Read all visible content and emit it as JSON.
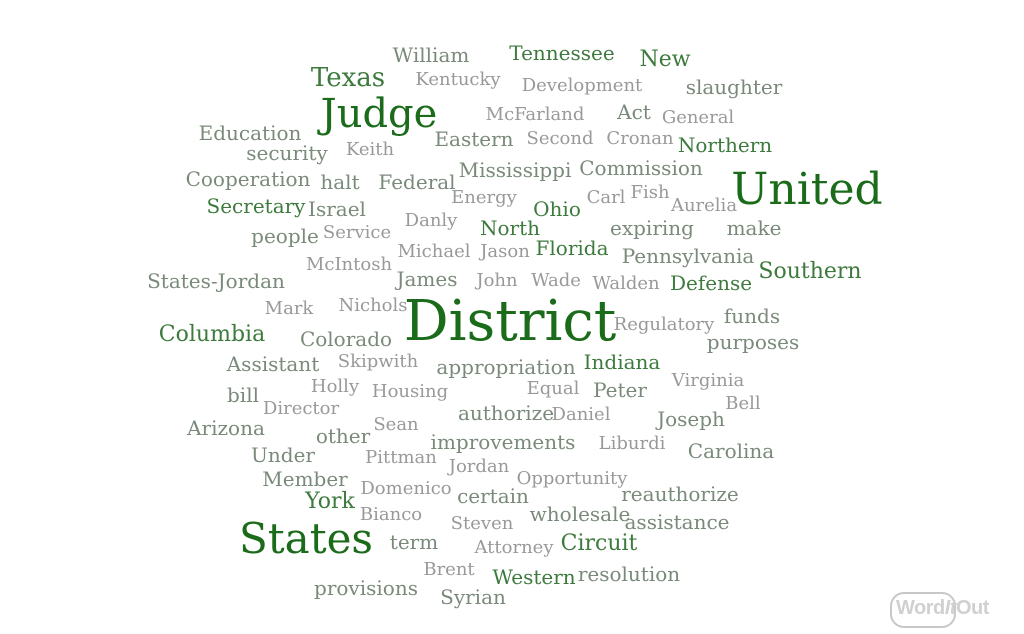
{
  "colors": {
    "dark": "#1a6b1a",
    "mid": "#3d7a3d",
    "gray": "#7a8a7a",
    "light": "#999999"
  },
  "logo": {
    "part1": "Word",
    "part2": "It",
    "part3": "Out"
  },
  "words": [
    {
      "text": "William",
      "tone": "gray",
      "size": 20
    },
    {
      "text": "Tennessee",
      "tone": "mid",
      "size": 20
    },
    {
      "text": "New",
      "tone": "mid",
      "size": 22
    },
    {
      "text": "Texas",
      "tone": "mid",
      "size": 26
    },
    {
      "text": "Kentucky",
      "tone": "light",
      "size": 18
    },
    {
      "text": "Development",
      "tone": "light",
      "size": 18
    },
    {
      "text": "slaughter",
      "tone": "gray",
      "size": 20
    },
    {
      "text": "Judge",
      "tone": "dark",
      "size": 40
    },
    {
      "text": "McFarland",
      "tone": "light",
      "size": 18
    },
    {
      "text": "Act",
      "tone": "gray",
      "size": 20
    },
    {
      "text": "General",
      "tone": "light",
      "size": 18
    },
    {
      "text": "Education",
      "tone": "gray",
      "size": 20
    },
    {
      "text": "Eastern",
      "tone": "gray",
      "size": 20
    },
    {
      "text": "Second",
      "tone": "light",
      "size": 18
    },
    {
      "text": "Cronan",
      "tone": "light",
      "size": 18
    },
    {
      "text": "Northern",
      "tone": "mid",
      "size": 20
    },
    {
      "text": "security",
      "tone": "gray",
      "size": 20
    },
    {
      "text": "Keith",
      "tone": "light",
      "size": 18
    },
    {
      "text": "Mississippi",
      "tone": "gray",
      "size": 20
    },
    {
      "text": "Commission",
      "tone": "gray",
      "size": 20
    },
    {
      "text": "United",
      "tone": "dark",
      "size": 44
    },
    {
      "text": "Cooperation",
      "tone": "gray",
      "size": 20
    },
    {
      "text": "halt",
      "tone": "gray",
      "size": 20
    },
    {
      "text": "Federal",
      "tone": "gray",
      "size": 20
    },
    {
      "text": "Energy",
      "tone": "light",
      "size": 18
    },
    {
      "text": "Carl",
      "tone": "light",
      "size": 18
    },
    {
      "text": "Fish",
      "tone": "light",
      "size": 18
    },
    {
      "text": "Secretary",
      "tone": "mid",
      "size": 20
    },
    {
      "text": "Israel",
      "tone": "gray",
      "size": 20
    },
    {
      "text": "Ohio",
      "tone": "mid",
      "size": 20
    },
    {
      "text": "Aurelia",
      "tone": "light",
      "size": 18
    },
    {
      "text": "Danly",
      "tone": "light",
      "size": 18
    },
    {
      "text": "North",
      "tone": "mid",
      "size": 20
    },
    {
      "text": "expiring",
      "tone": "gray",
      "size": 20
    },
    {
      "text": "make",
      "tone": "gray",
      "size": 20
    },
    {
      "text": "people",
      "tone": "gray",
      "size": 20
    },
    {
      "text": "Service",
      "tone": "light",
      "size": 18
    },
    {
      "text": "Florida",
      "tone": "mid",
      "size": 20
    },
    {
      "text": "Michael",
      "tone": "light",
      "size": 18
    },
    {
      "text": "Jason",
      "tone": "light",
      "size": 18
    },
    {
      "text": "Pennsylvania",
      "tone": "gray",
      "size": 20
    },
    {
      "text": "McIntosh",
      "tone": "light",
      "size": 18
    },
    {
      "text": "Southern",
      "tone": "mid",
      "size": 22
    },
    {
      "text": "States-Jordan",
      "tone": "gray",
      "size": 20
    },
    {
      "text": "James",
      "tone": "gray",
      "size": 20
    },
    {
      "text": "John",
      "tone": "light",
      "size": 18
    },
    {
      "text": "Wade",
      "tone": "light",
      "size": 18
    },
    {
      "text": "Walden",
      "tone": "light",
      "size": 18
    },
    {
      "text": "Defense",
      "tone": "mid",
      "size": 20
    },
    {
      "text": "Mark",
      "tone": "light",
      "size": 18
    },
    {
      "text": "Nichols",
      "tone": "light",
      "size": 18
    },
    {
      "text": "District",
      "tone": "dark",
      "size": 56
    },
    {
      "text": "funds",
      "tone": "gray",
      "size": 20
    },
    {
      "text": "Regulatory",
      "tone": "light",
      "size": 18
    },
    {
      "text": "Columbia",
      "tone": "mid",
      "size": 22
    },
    {
      "text": "Colorado",
      "tone": "gray",
      "size": 20
    },
    {
      "text": "purposes",
      "tone": "gray",
      "size": 20
    },
    {
      "text": "Assistant",
      "tone": "gray",
      "size": 20
    },
    {
      "text": "Skipwith",
      "tone": "light",
      "size": 18
    },
    {
      "text": "appropriation",
      "tone": "gray",
      "size": 20
    },
    {
      "text": "Indiana",
      "tone": "mid",
      "size": 20
    },
    {
      "text": "Virginia",
      "tone": "light",
      "size": 18
    },
    {
      "text": "bill",
      "tone": "gray",
      "size": 20
    },
    {
      "text": "Holly",
      "tone": "light",
      "size": 18
    },
    {
      "text": "Housing",
      "tone": "light",
      "size": 18
    },
    {
      "text": "Equal",
      "tone": "light",
      "size": 18
    },
    {
      "text": "Peter",
      "tone": "gray",
      "size": 20
    },
    {
      "text": "Director",
      "tone": "light",
      "size": 18
    },
    {
      "text": "Bell",
      "tone": "light",
      "size": 18
    },
    {
      "text": "authorize",
      "tone": "gray",
      "size": 20
    },
    {
      "text": "Daniel",
      "tone": "light",
      "size": 18
    },
    {
      "text": "Joseph",
      "tone": "gray",
      "size": 20
    },
    {
      "text": "Arizona",
      "tone": "gray",
      "size": 20
    },
    {
      "text": "Sean",
      "tone": "light",
      "size": 18
    },
    {
      "text": "other",
      "tone": "gray",
      "size": 20
    },
    {
      "text": "improvements",
      "tone": "gray",
      "size": 20
    },
    {
      "text": "Liburdi",
      "tone": "light",
      "size": 18
    },
    {
      "text": "Carolina",
      "tone": "gray",
      "size": 20
    },
    {
      "text": "Under",
      "tone": "gray",
      "size": 20
    },
    {
      "text": "Pittman",
      "tone": "light",
      "size": 18
    },
    {
      "text": "Jordan",
      "tone": "light",
      "size": 18
    },
    {
      "text": "Member",
      "tone": "gray",
      "size": 20
    },
    {
      "text": "Opportunity",
      "tone": "light",
      "size": 18
    },
    {
      "text": "Domenico",
      "tone": "light",
      "size": 18
    },
    {
      "text": "reauthorize",
      "tone": "gray",
      "size": 20
    },
    {
      "text": "York",
      "tone": "mid",
      "size": 22
    },
    {
      "text": "certain",
      "tone": "gray",
      "size": 20
    },
    {
      "text": "Bianco",
      "tone": "light",
      "size": 18
    },
    {
      "text": "wholesale",
      "tone": "gray",
      "size": 20
    },
    {
      "text": "assistance",
      "tone": "gray",
      "size": 20
    },
    {
      "text": "Steven",
      "tone": "light",
      "size": 18
    },
    {
      "text": "States",
      "tone": "dark",
      "size": 42
    },
    {
      "text": "term",
      "tone": "gray",
      "size": 20
    },
    {
      "text": "Attorney",
      "tone": "light",
      "size": 18
    },
    {
      "text": "Circuit",
      "tone": "mid",
      "size": 22
    },
    {
      "text": "Brent",
      "tone": "light",
      "size": 18
    },
    {
      "text": "Western",
      "tone": "mid",
      "size": 20
    },
    {
      "text": "resolution",
      "tone": "gray",
      "size": 20
    },
    {
      "text": "provisions",
      "tone": "gray",
      "size": 20
    },
    {
      "text": "Syrian",
      "tone": "gray",
      "size": 20
    }
  ]
}
